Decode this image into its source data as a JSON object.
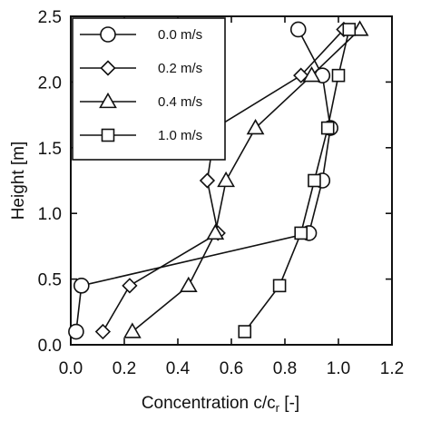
{
  "chart_data": {
    "type": "line",
    "title": "",
    "xlabel": "Concentration c/c",
    "xlabel_sub": "r",
    "xlabel_unit": " [-]",
    "ylabel": "Height [m]",
    "xlim": [
      0.0,
      1.2
    ],
    "ylim": [
      0.0,
      2.5
    ],
    "xticks": [
      0.0,
      0.2,
      0.4,
      0.6,
      0.8,
      1.0,
      1.2
    ],
    "xtick_labels": [
      "0.0",
      "0.2",
      "0.4",
      "0.6",
      "0.8",
      "1.0",
      "1.2"
    ],
    "yticks": [
      0.0,
      0.5,
      1.0,
      1.5,
      2.0,
      2.5
    ],
    "ytick_labels": [
      "0.0",
      "0.5",
      "1.0",
      "1.5",
      "2.0",
      "2.5"
    ],
    "grid": false,
    "legend_position": "top-left",
    "series": [
      {
        "name": "0.0 m/s",
        "marker": "circle",
        "color": "#111111",
        "points": [
          [
            0.02,
            0.1
          ],
          [
            0.04,
            0.45
          ],
          [
            0.89,
            0.85
          ],
          [
            0.94,
            1.25
          ],
          [
            0.97,
            1.65
          ],
          [
            0.94,
            2.05
          ],
          [
            0.85,
            2.4
          ]
        ]
      },
      {
        "name": "0.2 m/s",
        "marker": "diamond",
        "color": "#111111",
        "points": [
          [
            0.12,
            0.1
          ],
          [
            0.22,
            0.45
          ],
          [
            0.55,
            0.85
          ],
          [
            0.51,
            1.25
          ],
          [
            0.54,
            1.65
          ],
          [
            0.86,
            2.05
          ],
          [
            1.02,
            2.4
          ]
        ]
      },
      {
        "name": "0.4 m/s",
        "marker": "triangle",
        "color": "#111111",
        "points": [
          [
            0.23,
            0.1
          ],
          [
            0.44,
            0.45
          ],
          [
            0.54,
            0.85
          ],
          [
            0.58,
            1.25
          ],
          [
            0.69,
            1.65
          ],
          [
            0.9,
            2.05
          ],
          [
            1.08,
            2.4
          ]
        ]
      },
      {
        "name": "1.0 m/s",
        "marker": "square",
        "color": "#111111",
        "points": [
          [
            0.65,
            0.1
          ],
          [
            0.78,
            0.45
          ],
          [
            0.86,
            0.85
          ],
          [
            0.91,
            1.25
          ],
          [
            0.96,
            1.65
          ],
          [
            1.0,
            2.05
          ],
          [
            1.04,
            2.4
          ]
        ]
      }
    ]
  }
}
